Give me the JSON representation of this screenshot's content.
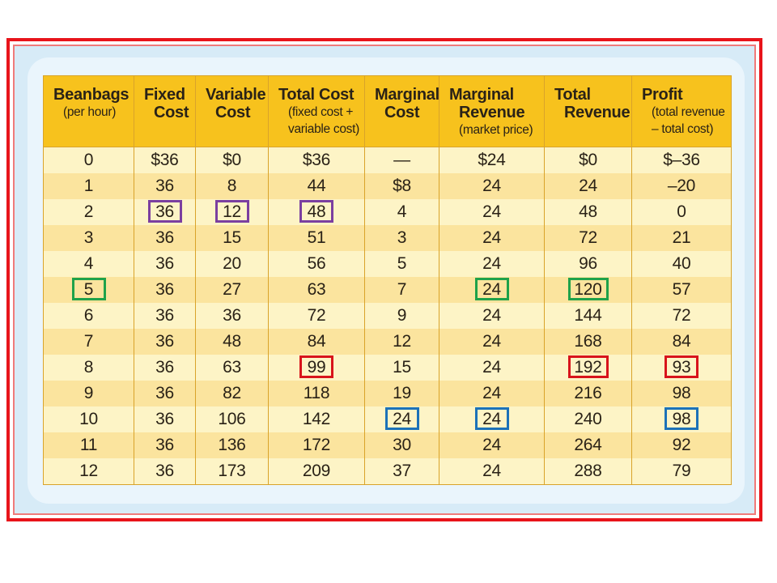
{
  "colors": {
    "frame": "#e8141b",
    "header": "#f7c21d",
    "row_light": "#fdf4c6",
    "row_dark": "#fbe49e",
    "highlight_purple": "#7b3fa0",
    "highlight_green": "#1fa24a",
    "highlight_red": "#d8141b",
    "highlight_blue": "#1c72b8"
  },
  "table": {
    "headers": [
      {
        "title": [
          "Beanbags"
        ],
        "sub": [
          "(per hour)"
        ]
      },
      {
        "title": [
          "Fixed",
          "Cost"
        ],
        "sub": []
      },
      {
        "title": [
          "Variable",
          "Cost"
        ],
        "sub": []
      },
      {
        "title": [
          "Total Cost"
        ],
        "sub": [
          "(fixed cost +",
          "variable cost)"
        ]
      },
      {
        "title": [
          "Marginal",
          "Cost"
        ],
        "sub": []
      },
      {
        "title": [
          "Marginal",
          "Revenue"
        ],
        "sub": [
          "(market price)"
        ]
      },
      {
        "title": [
          "Total",
          "Revenue"
        ],
        "sub": []
      },
      {
        "title": [
          "Profit"
        ],
        "sub": [
          "(total revenue",
          "– total cost)"
        ]
      }
    ],
    "rows": [
      [
        "0",
        "$36",
        "$0",
        "$36",
        "—",
        "$24",
        "$0",
        "$–36"
      ],
      [
        "1",
        "36",
        "8",
        "44",
        "$8",
        "24",
        "24",
        "–20"
      ],
      [
        "2",
        "36",
        "12",
        "48",
        "4",
        "24",
        "48",
        "0"
      ],
      [
        "3",
        "36",
        "15",
        "51",
        "3",
        "24",
        "72",
        "21"
      ],
      [
        "4",
        "36",
        "20",
        "56",
        "5",
        "24",
        "96",
        "40"
      ],
      [
        "5",
        "36",
        "27",
        "63",
        "7",
        "24",
        "120",
        "57"
      ],
      [
        "6",
        "36",
        "36",
        "72",
        "9",
        "24",
        "144",
        "72"
      ],
      [
        "7",
        "36",
        "48",
        "84",
        "12",
        "24",
        "168",
        "84"
      ],
      [
        "8",
        "36",
        "63",
        "99",
        "15",
        "24",
        "192",
        "93"
      ],
      [
        "9",
        "36",
        "82",
        "118",
        "19",
        "24",
        "216",
        "98"
      ],
      [
        "10",
        "36",
        "106",
        "142",
        "24",
        "24",
        "240",
        "98"
      ],
      [
        "11",
        "36",
        "136",
        "172",
        "30",
        "24",
        "264",
        "92"
      ],
      [
        "12",
        "36",
        "173",
        "209",
        "37",
        "24",
        "288",
        "79"
      ]
    ],
    "highlights": [
      {
        "row": 2,
        "col": 1,
        "color": "purple"
      },
      {
        "row": 2,
        "col": 2,
        "color": "purple"
      },
      {
        "row": 2,
        "col": 3,
        "color": "purple"
      },
      {
        "row": 5,
        "col": 0,
        "color": "green"
      },
      {
        "row": 5,
        "col": 5,
        "color": "green"
      },
      {
        "row": 5,
        "col": 6,
        "color": "green"
      },
      {
        "row": 8,
        "col": 3,
        "color": "red"
      },
      {
        "row": 8,
        "col": 6,
        "color": "red"
      },
      {
        "row": 8,
        "col": 7,
        "color": "red"
      },
      {
        "row": 10,
        "col": 4,
        "color": "blue"
      },
      {
        "row": 10,
        "col": 5,
        "color": "blue"
      },
      {
        "row": 10,
        "col": 7,
        "color": "blue"
      }
    ]
  }
}
